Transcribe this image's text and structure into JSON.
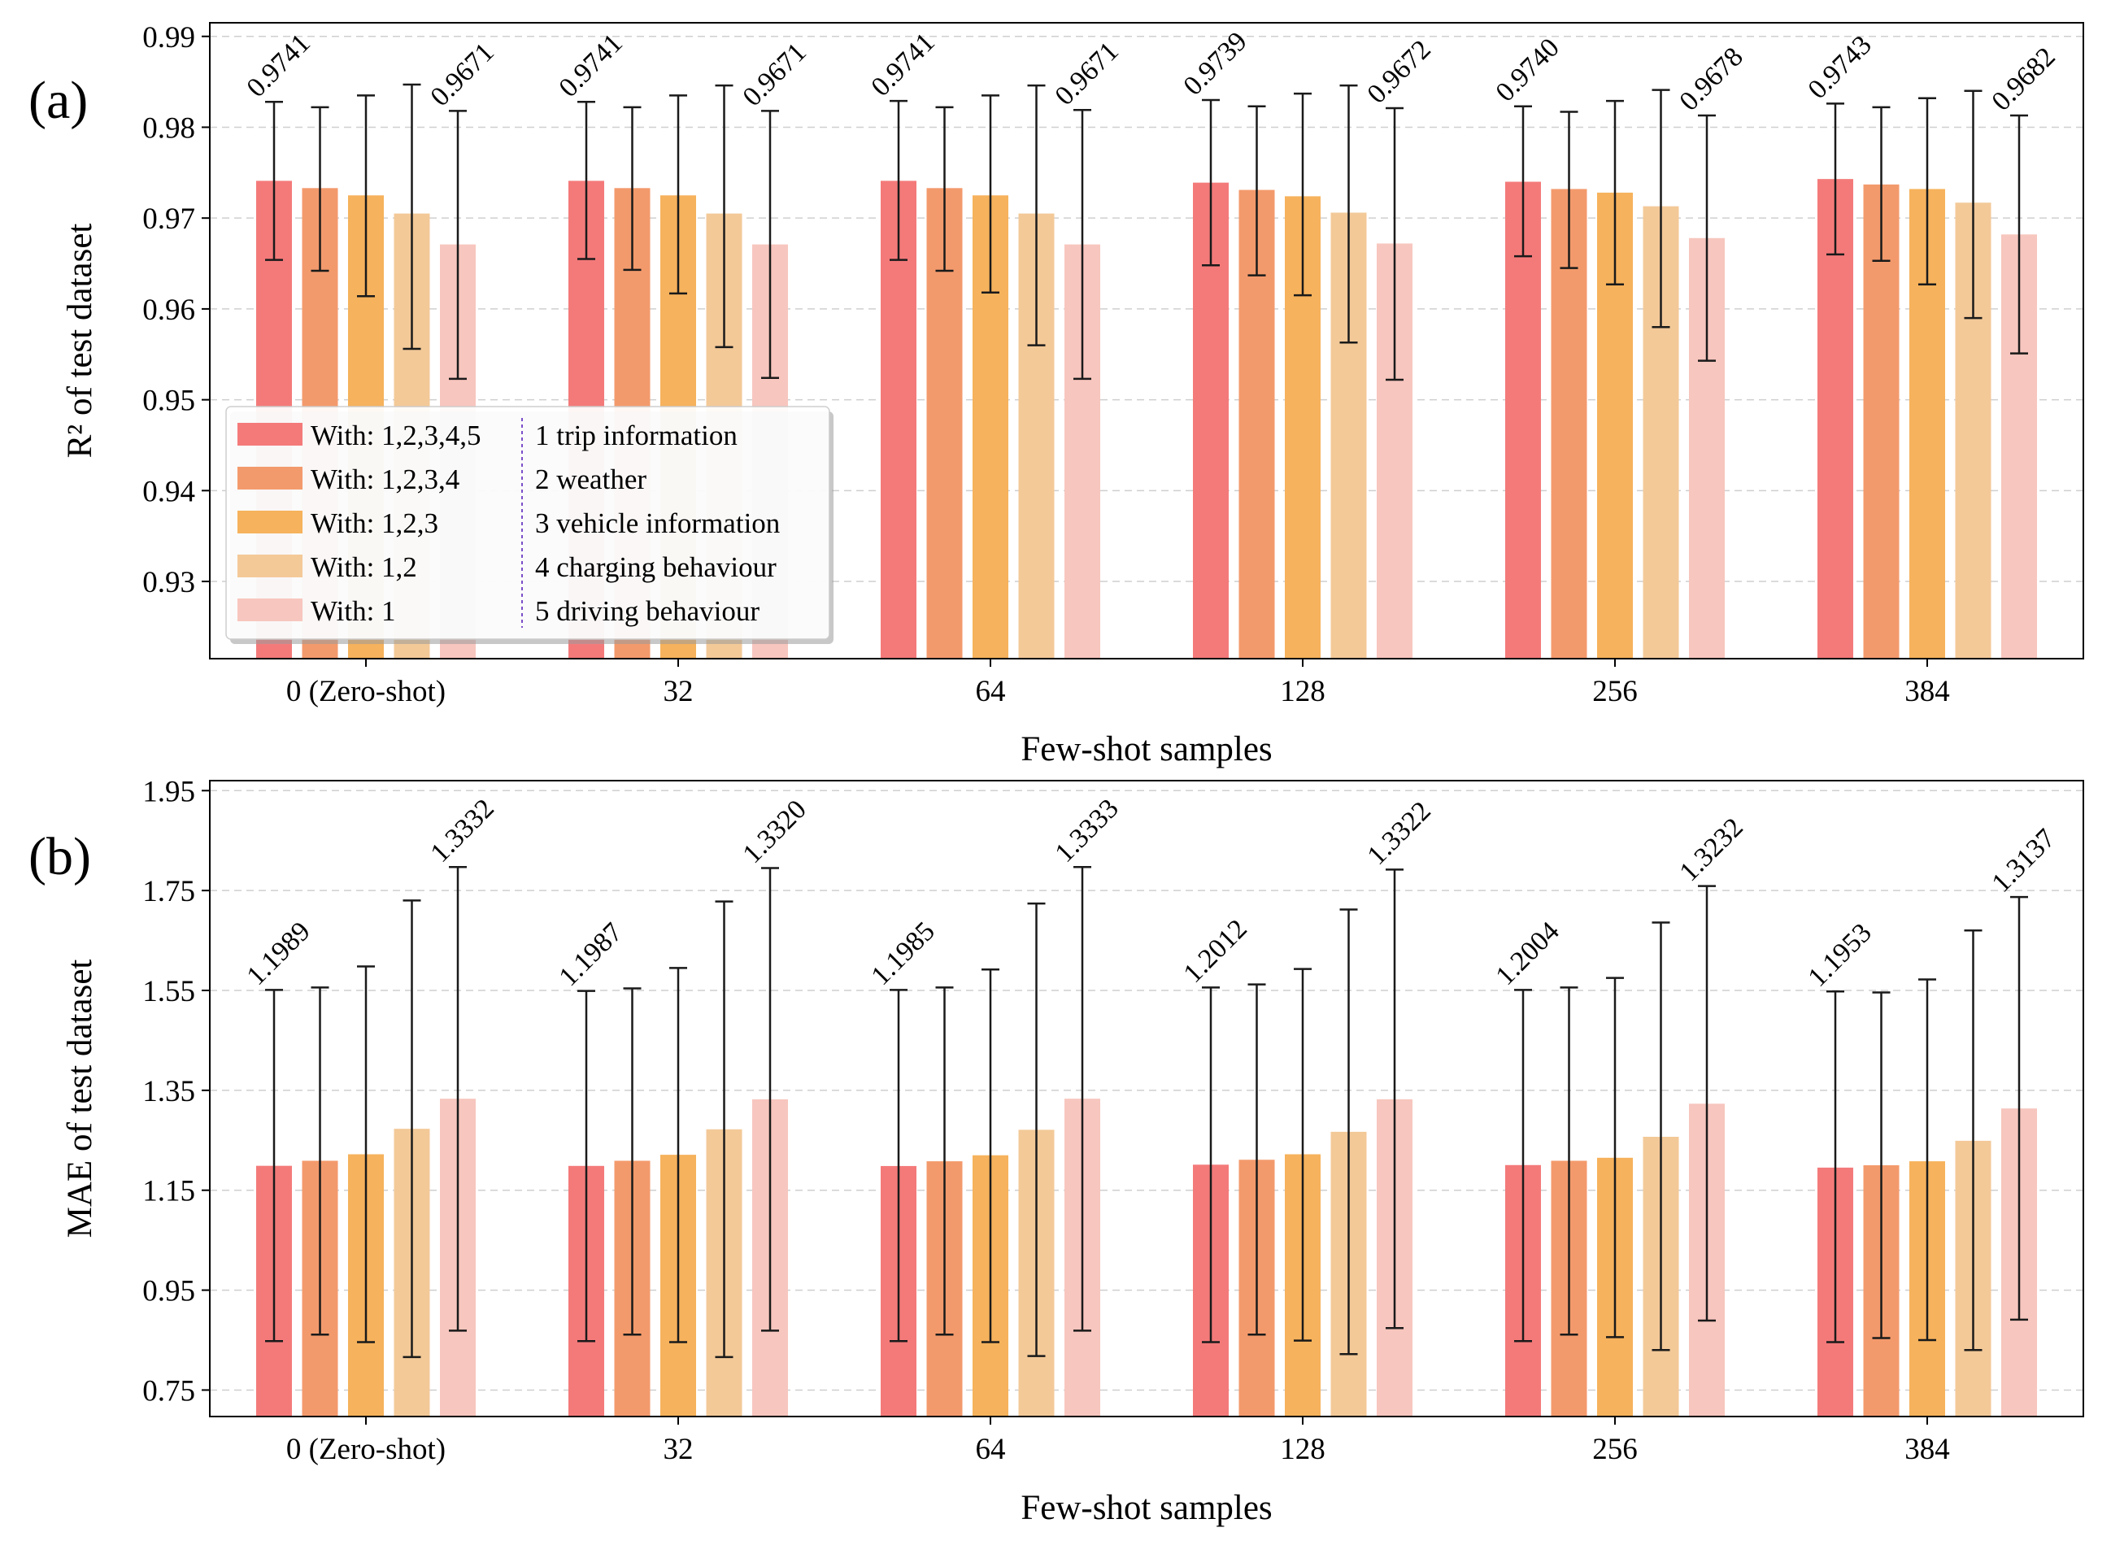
{
  "chart_data": [
    {
      "panel_label": "(a)",
      "type": "bar",
      "title": "",
      "xlabel": "Few-shot samples",
      "ylabel": "R² of test dataset",
      "ylim": [
        0.9215,
        0.9915
      ],
      "yticks": [
        0.93,
        0.94,
        0.95,
        0.96,
        0.97,
        0.98,
        0.99
      ],
      "ytick_labels": [
        "0.93",
        "0.94",
        "0.95",
        "0.96",
        "0.97",
        "0.98",
        "0.99"
      ],
      "grid": "horizontal dashed",
      "categories": [
        "0 (Zero-shot)",
        "32",
        "64",
        "128",
        "256",
        "384"
      ],
      "series": [
        {
          "name": "With: 1,2,3,4,5",
          "color": "#F47A7A",
          "values": [
            0.9741,
            0.9741,
            0.9741,
            0.9739,
            0.974,
            0.9743
          ],
          "err_low": [
            0.9654,
            0.9655,
            0.9654,
            0.9648,
            0.9658,
            0.966
          ],
          "err_high": [
            0.9828,
            0.9828,
            0.9829,
            0.983,
            0.9823,
            0.9826
          ]
        },
        {
          "name": "With: 1,2,3,4",
          "color": "#F39A6C",
          "values": [
            0.9733,
            0.9733,
            0.9733,
            0.9731,
            0.9732,
            0.9737
          ],
          "err_low": [
            0.9642,
            0.9643,
            0.9642,
            0.9637,
            0.9645,
            0.9653
          ],
          "err_high": [
            0.9822,
            0.9822,
            0.9822,
            0.9823,
            0.9817,
            0.9822
          ]
        },
        {
          "name": "With: 1,2,3",
          "color": "#F6B25C",
          "values": [
            0.9725,
            0.9725,
            0.9725,
            0.9724,
            0.9728,
            0.9732
          ],
          "err_low": [
            0.9614,
            0.9617,
            0.9618,
            0.9615,
            0.9627,
            0.9627
          ],
          "err_high": [
            0.9835,
            0.9835,
            0.9835,
            0.9837,
            0.9829,
            0.9832
          ]
        },
        {
          "name": "With: 1,2",
          "color": "#F3C998",
          "values": [
            0.9705,
            0.9705,
            0.9705,
            0.9706,
            0.9713,
            0.9717
          ],
          "err_low": [
            0.9556,
            0.9558,
            0.956,
            0.9563,
            0.958,
            0.959
          ],
          "err_high": [
            0.9847,
            0.9846,
            0.9846,
            0.9846,
            0.9841,
            0.984
          ]
        },
        {
          "name": "With: 1",
          "color": "#F7C6BE",
          "values": [
            0.9671,
            0.9671,
            0.9671,
            0.9672,
            0.9678,
            0.9682
          ],
          "err_low": [
            0.9523,
            0.9524,
            0.9523,
            0.9522,
            0.9543,
            0.9551
          ],
          "err_high": [
            0.9818,
            0.9818,
            0.9819,
            0.9821,
            0.9813,
            0.9813
          ]
        }
      ],
      "value_labels": [
        {
          "series": "With: 1,2,3,4,5",
          "labels": [
            "0.9741",
            "0.9741",
            "0.9741",
            "0.9739",
            "0.9740",
            "0.9743"
          ]
        },
        {
          "series": "With: 1",
          "labels": [
            "0.9671",
            "0.9671",
            "0.9671",
            "0.9672",
            "0.9678",
            "0.9682"
          ]
        }
      ],
      "legend": {
        "placement": "lower-left",
        "entries": [
          "With: 1,2,3,4,5",
          "With: 1,2,3,4",
          "With: 1,2,3",
          "With: 1,2",
          "With: 1"
        ],
        "notes": [
          "1 trip information",
          "2 weather",
          "3 vehicle information",
          "4 charging behaviour",
          "5 driving behaviour"
        ]
      }
    },
    {
      "panel_label": "(b)",
      "type": "bar",
      "title": "",
      "xlabel": "Few-shot samples",
      "ylabel": "MAE of test dataset",
      "ylim": [
        0.697,
        1.97
      ],
      "yticks": [
        0.75,
        0.95,
        1.15,
        1.35,
        1.55,
        1.75,
        1.95
      ],
      "ytick_labels": [
        "0.75",
        "0.95",
        "1.15",
        "1.35",
        "1.55",
        "1.75",
        "1.95"
      ],
      "grid": "horizontal dashed",
      "categories": [
        "0 (Zero-shot)",
        "32",
        "64",
        "128",
        "256",
        "384"
      ],
      "series": [
        {
          "name": "With: 1,2,3,4,5",
          "color": "#F47A7A",
          "values": [
            1.1989,
            1.1987,
            1.1985,
            1.2012,
            1.2004,
            1.1953
          ],
          "err_low": [
            0.848,
            0.848,
            0.848,
            0.846,
            0.848,
            0.846
          ],
          "err_high": [
            1.551,
            1.549,
            1.551,
            1.556,
            1.551,
            1.548
          ]
        },
        {
          "name": "With: 1,2,3,4",
          "color": "#F39A6C",
          "values": [
            1.209,
            1.209,
            1.208,
            1.211,
            1.209,
            1.2
          ],
          "err_low": [
            0.861,
            0.861,
            0.861,
            0.861,
            0.861,
            0.854
          ],
          "err_high": [
            1.556,
            1.554,
            1.556,
            1.562,
            1.556,
            1.546
          ]
        },
        {
          "name": "With: 1,2,3",
          "color": "#F6B25C",
          "values": [
            1.222,
            1.221,
            1.22,
            1.222,
            1.215,
            1.208
          ],
          "err_low": [
            0.846,
            0.846,
            0.846,
            0.849,
            0.856,
            0.85
          ],
          "err_high": [
            1.598,
            1.595,
            1.592,
            1.593,
            1.575,
            1.572
          ]
        },
        {
          "name": "With: 1,2",
          "color": "#F3C998",
          "values": [
            1.273,
            1.272,
            1.271,
            1.267,
            1.257,
            1.249
          ],
          "err_low": [
            0.816,
            0.816,
            0.818,
            0.822,
            0.83,
            0.83
          ],
          "err_high": [
            1.73,
            1.728,
            1.724,
            1.712,
            1.686,
            1.67
          ]
        },
        {
          "name": "With: 1",
          "color": "#F7C6BE",
          "values": [
            1.3332,
            1.332,
            1.3333,
            1.3322,
            1.3232,
            1.3137
          ],
          "err_low": [
            0.869,
            0.869,
            0.869,
            0.874,
            0.889,
            0.891
          ],
          "err_high": [
            1.797,
            1.795,
            1.797,
            1.792,
            1.759,
            1.737
          ]
        }
      ],
      "value_labels": [
        {
          "series": "With: 1,2,3,4,5",
          "labels": [
            "1.1989",
            "1.1987",
            "1.1985",
            "1.2012",
            "1.2004",
            "1.1953"
          ]
        },
        {
          "series": "With: 1",
          "labels": [
            "1.3332",
            "1.3320",
            "1.3333",
            "1.3322",
            "1.3232",
            "1.3137"
          ]
        }
      ]
    }
  ]
}
